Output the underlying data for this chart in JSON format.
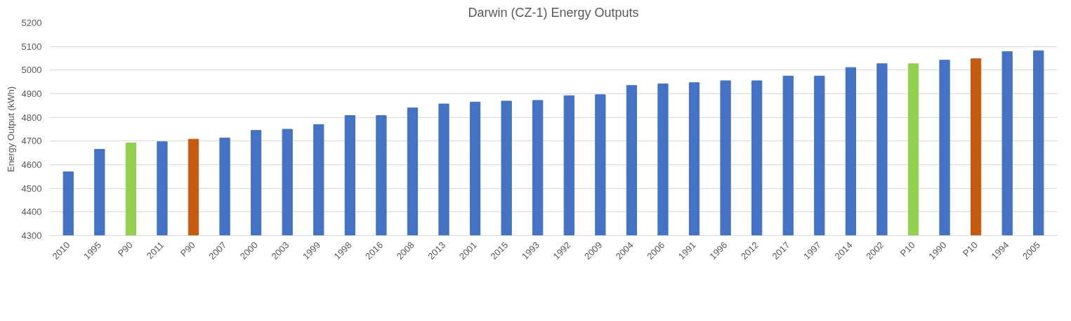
{
  "chart_data": {
    "type": "bar",
    "title": "Darwin (CZ-1) Energy Outputs",
    "ylabel": "Energy Output (kWh)",
    "categories": [
      "2010",
      "1995",
      "P90",
      "2011",
      "P90",
      "2007",
      "2000",
      "2003",
      "1999",
      "1998",
      "2016",
      "2008",
      "2013",
      "2001",
      "2015",
      "1993",
      "1992",
      "2009",
      "2004",
      "2006",
      "1991",
      "1996",
      "2012",
      "2017",
      "1997",
      "2014",
      "2002",
      "P10",
      "1990",
      "P10",
      "1994",
      "2005"
    ],
    "values": [
      4570,
      4665,
      4692,
      4697,
      4708,
      4713,
      4745,
      4750,
      4770,
      4808,
      4808,
      4840,
      4857,
      4865,
      4869,
      4872,
      4892,
      4896,
      4935,
      4942,
      4947,
      4955,
      4955,
      4975,
      4975,
      5011,
      5027,
      5027,
      5042,
      5048,
      5078,
      5082
    ],
    "colors": [
      "#4472c4",
      "#4472c4",
      "#92d050",
      "#4472c4",
      "#c55a11",
      "#4472c4",
      "#4472c4",
      "#4472c4",
      "#4472c4",
      "#4472c4",
      "#4472c4",
      "#4472c4",
      "#4472c4",
      "#4472c4",
      "#4472c4",
      "#4472c4",
      "#4472c4",
      "#4472c4",
      "#4472c4",
      "#4472c4",
      "#4472c4",
      "#4472c4",
      "#4472c4",
      "#4472c4",
      "#4472c4",
      "#4472c4",
      "#4472c4",
      "#92d050",
      "#4472c4",
      "#c55a11",
      "#4472c4",
      "#4472c4"
    ],
    "ylim": [
      4300,
      5200
    ],
    "yticks": [
      4300,
      4400,
      4500,
      4600,
      4700,
      4800,
      4900,
      5000,
      5100,
      5200
    ],
    "grid": "y"
  }
}
